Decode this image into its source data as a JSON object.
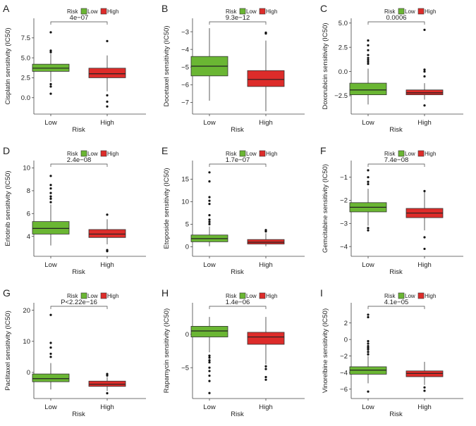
{
  "figure": {
    "legend": {
      "title": "Risk",
      "entries": [
        "Low",
        "High"
      ]
    },
    "colors": {
      "low_fill": "#6ab633",
      "high_fill": "#dd2c2a",
      "box_stroke": "#333333",
      "axis": "#444444"
    }
  },
  "chart_data": [
    {
      "panel": "A",
      "type": "box",
      "ylabel": "Cisplatin sensitivity (IC50)",
      "xlabel": "Risk",
      "categories": [
        "Low",
        "High"
      ],
      "ylim": [
        -1.7,
        9.6
      ],
      "yticks": [
        0.0,
        2.5,
        5.0,
        7.5
      ],
      "yticklabels": [
        "0.0",
        "2.5",
        "5.0",
        "7.5"
      ],
      "pvalue": "4e−07",
      "boxes": [
        {
          "name": "Low",
          "q1": 3.3,
          "median": 3.7,
          "q3": 4.2,
          "whislo": 2.0,
          "whishi": 5.5,
          "outliers": [
            8.2,
            5.9,
            5.7,
            1.7,
            1.4,
            0.5
          ]
        },
        {
          "name": "High",
          "q1": 2.5,
          "median": 3.0,
          "q3": 3.7,
          "whislo": 0.8,
          "whishi": 5.3,
          "outliers": [
            7.1,
            0.3,
            -0.5,
            -1.1
          ]
        }
      ]
    },
    {
      "panel": "B",
      "type": "box",
      "ylabel": "Docetaxel sensitivity (IC50)",
      "xlabel": "Risk",
      "categories": [
        "Low",
        "High"
      ],
      "ylim": [
        -7.5,
        -2.4
      ],
      "yticks": [
        -7,
        -6,
        -5,
        -4,
        -3
      ],
      "yticklabels": [
        "−7",
        "−6",
        "−5",
        "−4",
        "−3"
      ],
      "pvalue": "9.3e−12",
      "boxes": [
        {
          "name": "Low",
          "q1": -5.5,
          "median": -4.95,
          "q3": -4.4,
          "whislo": -6.9,
          "whishi": -2.8,
          "outliers": []
        },
        {
          "name": "High",
          "q1": -6.1,
          "median": -5.7,
          "q3": -5.2,
          "whislo": -7.5,
          "whishi": -3.5,
          "outliers": [
            -3.1,
            -3.05
          ]
        }
      ]
    },
    {
      "panel": "C",
      "type": "box",
      "ylabel": "Doxorubicin sensitivity (IC50)",
      "xlabel": "Risk",
      "categories": [
        "Low",
        "High"
      ],
      "ylim": [
        -4.1,
        5.2
      ],
      "yticks": [
        -2.5,
        0.0,
        2.5,
        5.0
      ],
      "yticklabels": [
        "−2.5",
        "0.0",
        "2.5",
        "5.0"
      ],
      "pvalue": "0.0006",
      "boxes": [
        {
          "name": "Low",
          "q1": -2.4,
          "median": -1.9,
          "q3": -1.2,
          "whislo": -3.4,
          "whishi": 0.3,
          "outliers": [
            3.2,
            2.7,
            2.2,
            1.7,
            1.4,
            1.2,
            1.0,
            0.8
          ]
        },
        {
          "name": "High",
          "q1": -2.4,
          "median": -2.2,
          "q3": -1.9,
          "whislo": -2.9,
          "whishi": -1.2,
          "outliers": [
            4.3,
            0.2,
            0.0,
            -0.5,
            -3.5
          ]
        }
      ]
    },
    {
      "panel": "D",
      "type": "box",
      "ylabel": "Erlotinib sensitivity (IC50)",
      "xlabel": "Risk",
      "categories": [
        "Low",
        "High"
      ],
      "ylim": [
        2.5,
        10.4
      ],
      "yticks": [
        4,
        6,
        8,
        10
      ],
      "yticklabels": [
        "4",
        "6",
        "8",
        "10"
      ],
      "pvalue": "2.4e−08",
      "boxes": [
        {
          "name": "Low",
          "q1": 4.2,
          "median": 4.7,
          "q3": 5.3,
          "whislo": 3.2,
          "whishi": 6.8,
          "outliers": [
            9.3,
            8.5,
            8.2,
            7.8,
            7.5,
            7.3,
            7.0
          ]
        },
        {
          "name": "High",
          "q1": 3.9,
          "median": 4.2,
          "q3": 4.6,
          "whislo": 3.3,
          "whishi": 5.5,
          "outliers": [
            5.9,
            2.8,
            2.7
          ]
        }
      ]
    },
    {
      "panel": "E",
      "type": "box",
      "ylabel": "Etoposide sensitivity (IC50)",
      "xlabel": "Risk",
      "categories": [
        "Low",
        "High"
      ],
      "ylim": [
        -1.5,
        18.5
      ],
      "yticks": [
        0,
        5,
        10,
        15
      ],
      "yticklabels": [
        "0",
        "5",
        "10",
        "15"
      ],
      "pvalue": "1.7e−07",
      "boxes": [
        {
          "name": "Low",
          "q1": 1.1,
          "median": 1.8,
          "q3": 2.6,
          "whislo": 0.1,
          "whishi": 4.5,
          "outliers": [
            16.5,
            14.5,
            11.0,
            10.2,
            9.5,
            7.0,
            6.0,
            5.5,
            5.0
          ]
        },
        {
          "name": "High",
          "q1": 0.6,
          "median": 1.0,
          "q3": 1.6,
          "whislo": 0.1,
          "whishi": 3.0,
          "outliers": [
            3.7,
            3.4
          ]
        }
      ]
    },
    {
      "panel": "F",
      "type": "box",
      "ylabel": "Gemcitabine sensitivity (IC50)",
      "xlabel": "Risk",
      "categories": [
        "Low",
        "High"
      ],
      "ylim": [
        -4.3,
        -0.4
      ],
      "yticks": [
        -4,
        -3,
        -2,
        -1
      ],
      "yticklabels": [
        "−4",
        "−3",
        "−2",
        "−1"
      ],
      "pvalue": "7.4e−08",
      "boxes": [
        {
          "name": "Low",
          "q1": -2.5,
          "median": -2.3,
          "q3": -2.1,
          "whislo": -3.1,
          "whishi": -1.5,
          "outliers": [
            -0.7,
            -1.0,
            -1.2,
            -1.3,
            -3.2,
            -3.3
          ]
        },
        {
          "name": "High",
          "q1": -2.75,
          "median": -2.55,
          "q3": -2.35,
          "whislo": -3.3,
          "whishi": -1.65,
          "outliers": [
            -1.6,
            -3.6,
            -4.1
          ]
        }
      ]
    },
    {
      "panel": "G",
      "type": "box",
      "ylabel": "Paclitaxel sensitivity (IC50)",
      "xlabel": "Risk",
      "categories": [
        "Low",
        "High"
      ],
      "ylim": [
        -7.5,
        21.5
      ],
      "yticks": [
        0,
        10,
        20
      ],
      "yticklabels": [
        "0",
        "10",
        "20"
      ],
      "pvalue": "P<2.22e−16",
      "boxes": [
        {
          "name": "Low",
          "q1": -3.0,
          "median": -2.0,
          "q3": -0.5,
          "whislo": -5.5,
          "whishi": 3.0,
          "outliers": [
            18.5,
            9.5,
            8.0,
            6.0,
            5.0
          ]
        },
        {
          "name": "High",
          "q1": -4.5,
          "median": -3.8,
          "q3": -2.8,
          "whislo": -6.0,
          "whishi": -1.5,
          "outliers": [
            -0.5,
            -1.0,
            -6.7
          ]
        }
      ]
    },
    {
      "panel": "H",
      "type": "box",
      "ylabel": "Rapamycin sensitivity (IC50)",
      "xlabel": "Risk",
      "categories": [
        "Low",
        "High"
      ],
      "ylim": [
        -9.2,
        4.3
      ],
      "yticks": [
        -5,
        0
      ],
      "yticklabels": [
        "−5",
        "0"
      ],
      "pvalue": "1.4e−06",
      "boxes": [
        {
          "name": "Low",
          "q1": -0.4,
          "median": 0.5,
          "q3": 1.2,
          "whislo": -2.7,
          "whishi": 2.6,
          "outliers": [
            -3.2,
            -3.5,
            -3.9,
            -4.2,
            -5.0,
            -5.5,
            -6.2,
            -7.0,
            -8.8
          ]
        },
        {
          "name": "High",
          "q1": -1.5,
          "median": -0.4,
          "q3": 0.3,
          "whislo": -4.5,
          "whishi": 2.6,
          "outliers": [
            -4.8,
            -5.2,
            -6.4,
            -6.8
          ]
        }
      ]
    },
    {
      "panel": "I",
      "type": "box",
      "ylabel": "Vinorelbine sensitivity (IC50)",
      "xlabel": "Risk",
      "categories": [
        "Low",
        "High"
      ],
      "ylim": [
        -6.8,
        4.1
      ],
      "yticks": [
        -6,
        -4,
        -2,
        0,
        2
      ],
      "yticklabels": [
        "−6",
        "−4",
        "−2",
        "0",
        "2"
      ],
      "pvalue": "4.1e−05",
      "boxes": [
        {
          "name": "Low",
          "q1": -4.2,
          "median": -3.7,
          "q3": -3.3,
          "whislo": -5.3,
          "whishi": -2.0,
          "outliers": [
            3.0,
            2.7,
            -0.2,
            -0.5,
            -0.8,
            -1.0,
            -1.2,
            -1.5,
            -1.8,
            -6.3
          ]
        },
        {
          "name": "High",
          "q1": -4.5,
          "median": -4.1,
          "q3": -3.8,
          "whislo": -5.5,
          "whishi": -2.7,
          "outliers": [
            -5.8,
            -6.2
          ]
        }
      ]
    }
  ]
}
